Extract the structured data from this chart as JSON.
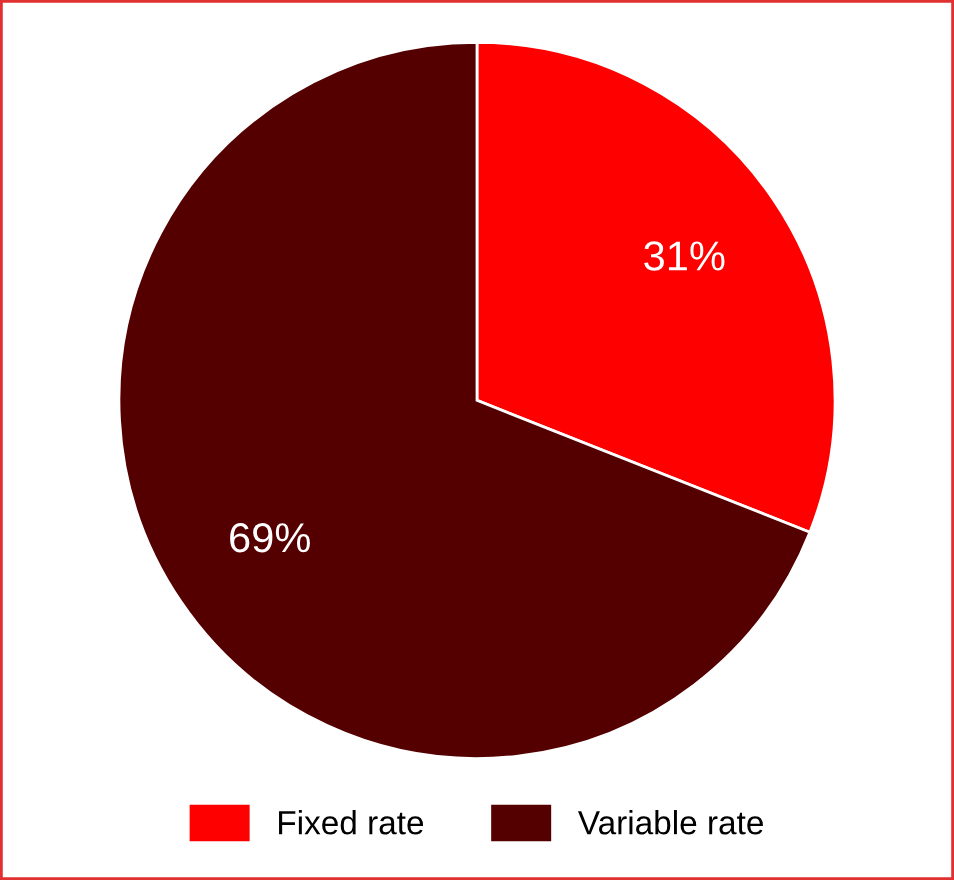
{
  "chart_data": {
    "type": "pie",
    "categories": [
      "Fixed rate",
      "Variable rate"
    ],
    "values": [
      31,
      69
    ],
    "colors": [
      "#ff0000",
      "#550000"
    ],
    "value_labels": [
      "31%",
      "69%"
    ],
    "legend": "bottom"
  }
}
